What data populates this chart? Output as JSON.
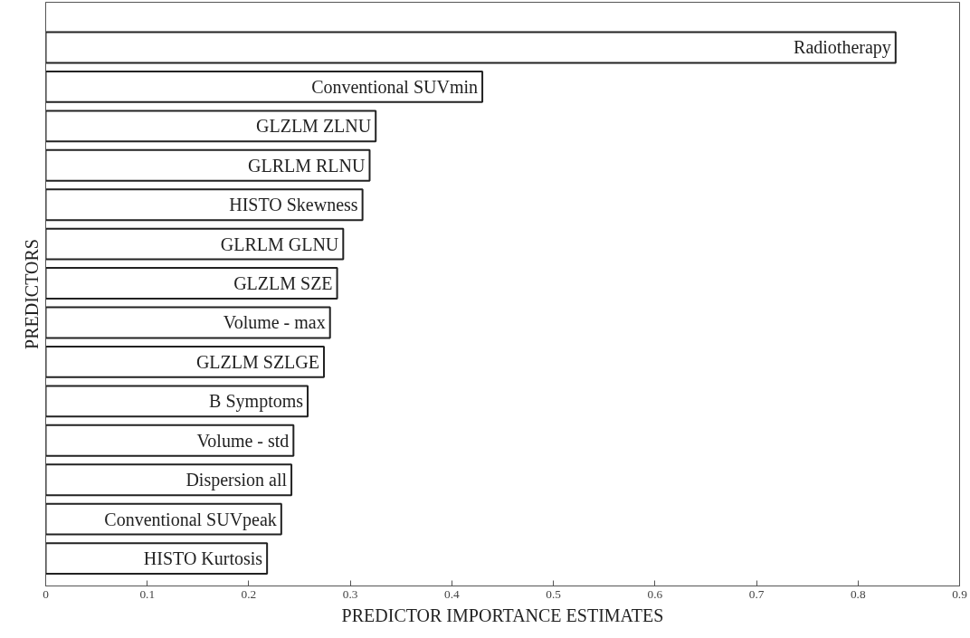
{
  "chart_data": {
    "type": "bar",
    "orientation": "horizontal",
    "xlabel": "PREDICTOR IMPORTANCE ESTIMATES",
    "ylabel": "PREDICTORS",
    "categories": [
      "Radiotherapy",
      "Conventional SUVmin",
      "GLZLM ZLNU",
      "GLRLM RLNU",
      "HISTO Skewness",
      "GLRLM GLNU",
      "GLZLM SZE",
      "Volume - max",
      "GLZLM SZLGE",
      "B Symptoms",
      "Volume - std",
      "Dispersion all",
      "Conventional SUVpeak",
      "HISTO Kurtosis"
    ],
    "values": [
      0.837,
      0.43,
      0.325,
      0.319,
      0.312,
      0.293,
      0.287,
      0.28,
      0.274,
      0.258,
      0.244,
      0.242,
      0.232,
      0.218
    ],
    "color": "#ffffff",
    "xlim": [
      0,
      0.9
    ],
    "xticks": [
      0,
      0.1,
      0.2,
      0.3,
      0.4,
      0.5,
      0.6,
      0.7,
      0.8,
      0.9
    ],
    "grid": false,
    "tick_labels": "x"
  }
}
